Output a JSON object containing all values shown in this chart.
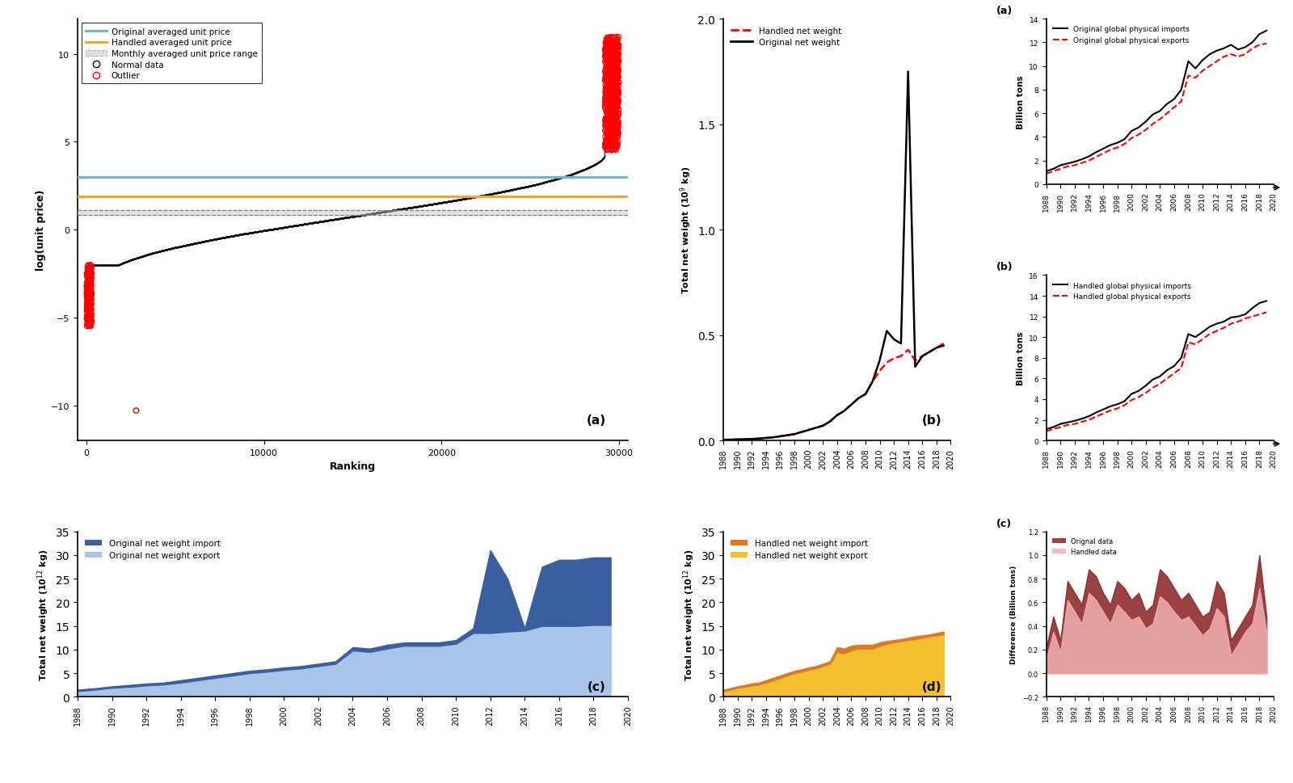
{
  "years": [
    1988,
    1989,
    1990,
    1991,
    1992,
    1993,
    1994,
    1995,
    1996,
    1997,
    1998,
    1999,
    2000,
    2001,
    2002,
    2003,
    2004,
    2005,
    2006,
    2007,
    2008,
    2009,
    2010,
    2011,
    2012,
    2013,
    2014,
    2015,
    2016,
    2017,
    2018,
    2019
  ],
  "orig_imports_bt": [
    1.1,
    1.3,
    1.6,
    1.75,
    1.9,
    2.1,
    2.35,
    2.7,
    3.0,
    3.3,
    3.5,
    3.8,
    4.5,
    4.8,
    5.3,
    5.9,
    6.2,
    6.8,
    7.2,
    8.0,
    10.4,
    9.8,
    10.5,
    11.0,
    11.3,
    11.5,
    11.8,
    11.4,
    11.6,
    12.0,
    12.7,
    13.0
  ],
  "orig_exports_bt": [
    0.9,
    1.1,
    1.3,
    1.5,
    1.6,
    1.8,
    2.0,
    2.3,
    2.6,
    2.9,
    3.1,
    3.4,
    3.9,
    4.2,
    4.6,
    5.1,
    5.5,
    6.0,
    6.5,
    7.0,
    9.2,
    9.0,
    9.6,
    10.0,
    10.4,
    10.8,
    11.0,
    10.8,
    11.0,
    11.5,
    11.8,
    11.9
  ],
  "hand_imports_bt": [
    1.1,
    1.3,
    1.6,
    1.75,
    1.9,
    2.1,
    2.35,
    2.7,
    3.0,
    3.3,
    3.5,
    3.8,
    4.5,
    4.8,
    5.3,
    5.9,
    6.2,
    6.8,
    7.2,
    8.0,
    10.3,
    10.0,
    10.5,
    11.0,
    11.3,
    11.5,
    11.9,
    12.0,
    12.2,
    12.8,
    13.3,
    13.5
  ],
  "hand_exports_bt": [
    0.9,
    1.1,
    1.3,
    1.5,
    1.6,
    1.8,
    2.0,
    2.3,
    2.6,
    2.9,
    3.1,
    3.4,
    3.9,
    4.2,
    4.6,
    5.1,
    5.5,
    6.0,
    6.5,
    7.0,
    9.5,
    9.3,
    9.8,
    10.3,
    10.6,
    10.9,
    11.3,
    11.5,
    11.8,
    12.0,
    12.2,
    12.4
  ],
  "orig_import_t12": [
    1.5,
    1.8,
    2.2,
    2.5,
    2.8,
    3.0,
    3.5,
    4.0,
    4.5,
    5.0,
    5.5,
    5.8,
    6.2,
    6.5,
    7.0,
    7.5,
    10.5,
    10.2,
    11.0,
    11.5,
    11.5,
    11.5,
    12.0,
    14.5,
    31.0,
    25.0,
    14.5,
    27.5,
    29.0,
    29.0,
    29.5,
    29.5
  ],
  "orig_export_t12": [
    1.2,
    1.5,
    1.9,
    2.1,
    2.4,
    2.6,
    3.0,
    3.5,
    4.0,
    4.5,
    5.0,
    5.3,
    5.7,
    6.0,
    6.5,
    7.0,
    9.8,
    9.5,
    10.2,
    10.8,
    10.8,
    10.8,
    11.2,
    13.5,
    13.5,
    13.8,
    14.0,
    15.0,
    15.0,
    15.0,
    15.2,
    15.2
  ],
  "hand_import_t12": [
    1.5,
    1.8,
    2.2,
    2.5,
    2.8,
    3.0,
    3.5,
    4.0,
    4.5,
    5.0,
    5.5,
    5.8,
    6.2,
    6.5,
    7.0,
    7.5,
    10.5,
    10.2,
    10.8,
    11.0,
    11.0,
    11.0,
    11.5,
    11.8,
    12.0,
    12.2,
    12.5,
    12.8,
    13.0,
    13.2,
    13.5,
    13.8
  ],
  "hand_export_t12": [
    1.2,
    1.5,
    1.9,
    2.1,
    2.4,
    2.6,
    3.0,
    3.5,
    4.0,
    4.5,
    5.0,
    5.3,
    5.7,
    6.0,
    6.5,
    7.0,
    9.5,
    9.2,
    9.8,
    10.2,
    10.2,
    10.2,
    10.8,
    11.2,
    11.5,
    11.8,
    12.0,
    12.2,
    12.5,
    12.8,
    13.0,
    13.2
  ],
  "net_weight_orig": [
    0.003,
    0.004,
    0.005,
    0.006,
    0.007,
    0.009,
    0.012,
    0.015,
    0.02,
    0.025,
    0.03,
    0.04,
    0.05,
    0.06,
    0.07,
    0.09,
    0.12,
    0.14,
    0.17,
    0.2,
    0.22,
    0.28,
    0.38,
    0.52,
    0.48,
    0.46,
    1.75,
    0.35,
    0.4,
    0.42,
    0.44,
    0.45
  ],
  "net_weight_hand": [
    0.003,
    0.004,
    0.005,
    0.006,
    0.007,
    0.009,
    0.012,
    0.015,
    0.02,
    0.025,
    0.03,
    0.04,
    0.05,
    0.06,
    0.07,
    0.09,
    0.12,
    0.14,
    0.17,
    0.2,
    0.22,
    0.28,
    0.33,
    0.37,
    0.39,
    0.4,
    0.43,
    0.38,
    0.4,
    0.42,
    0.44,
    0.46
  ],
  "diff_orig": [
    0.22,
    0.48,
    0.28,
    0.78,
    0.68,
    0.58,
    0.88,
    0.82,
    0.68,
    0.58,
    0.78,
    0.72,
    0.62,
    0.68,
    0.52,
    0.58,
    0.88,
    0.82,
    0.72,
    0.62,
    0.68,
    0.58,
    0.48,
    0.52,
    0.78,
    0.68,
    0.28,
    0.38,
    0.48,
    0.58,
    1.0,
    0.48
  ],
  "diff_hand": [
    0.12,
    0.35,
    0.18,
    0.62,
    0.52,
    0.42,
    0.68,
    0.62,
    0.52,
    0.42,
    0.58,
    0.52,
    0.45,
    0.48,
    0.38,
    0.42,
    0.65,
    0.6,
    0.52,
    0.45,
    0.48,
    0.4,
    0.32,
    0.38,
    0.55,
    0.48,
    0.15,
    0.25,
    0.35,
    0.42,
    0.72,
    0.35
  ],
  "blue_orig_line": 3.0,
  "orange_hand_line": 1.9,
  "gray_upper": 1.1,
  "gray_lower": 0.85,
  "color_blue_line": "#6db3d4",
  "color_orange_line": "#f0a830",
  "color_gray_band": "#c0c0c0",
  "color_dark_blue": "#3a5fa0",
  "color_light_blue": "#a8c4e8",
  "color_dark_orange": "#e07820",
  "color_light_orange": "#f5c030",
  "color_dark_red": "#8b2020",
  "color_light_red": "#f0b0b0"
}
